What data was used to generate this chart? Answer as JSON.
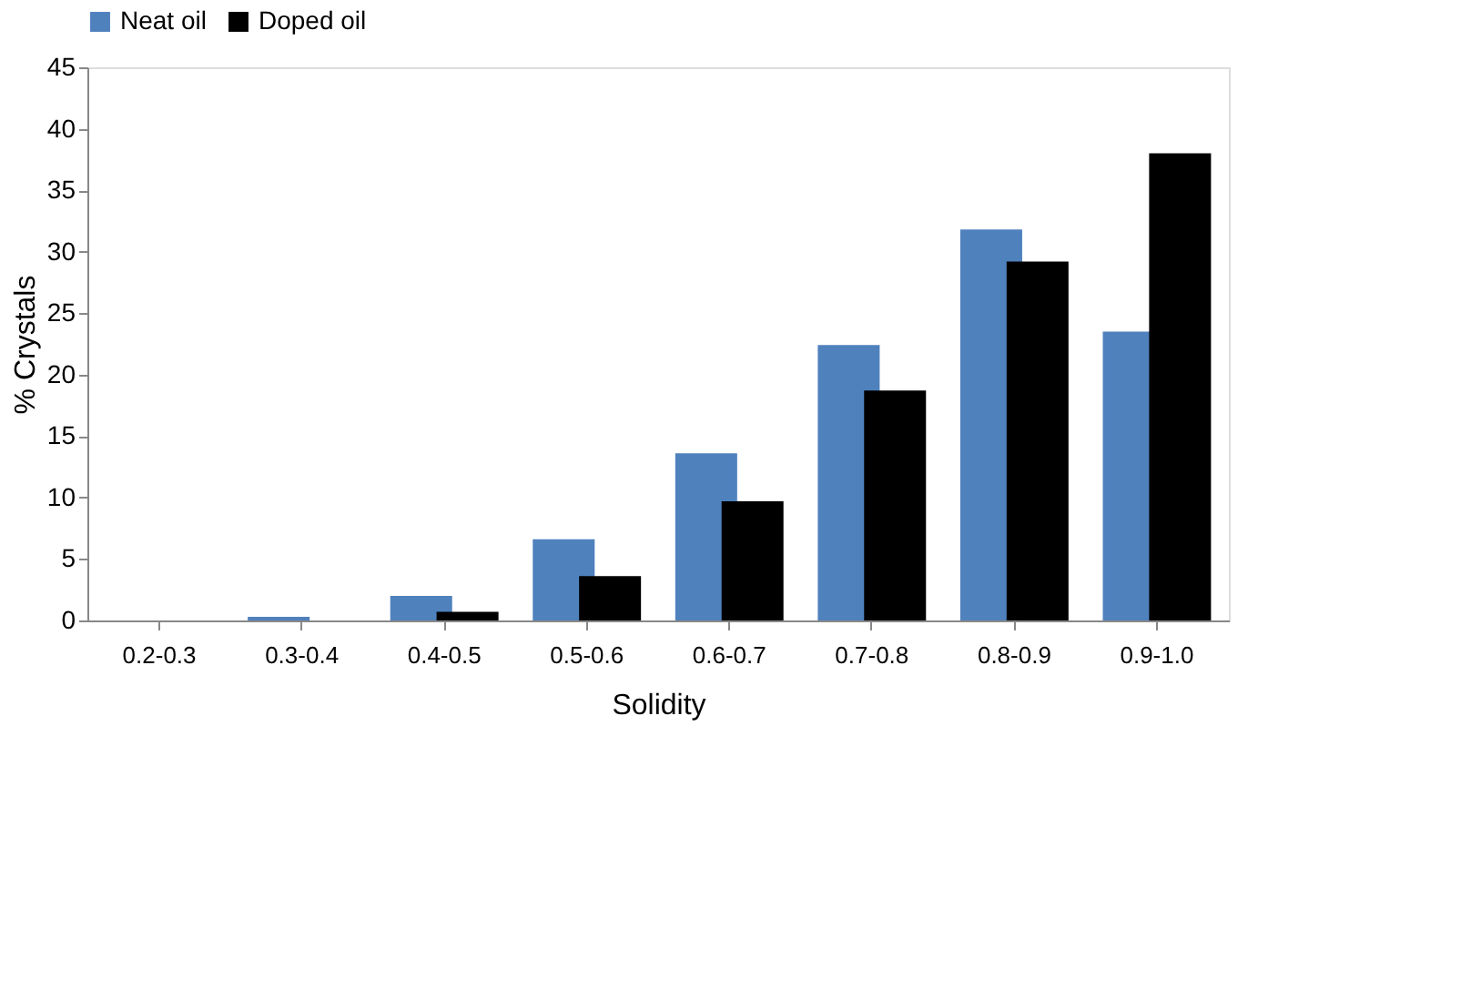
{
  "chart_data": {
    "type": "bar",
    "xlabel": "Solidity",
    "ylabel": "% Crystals",
    "categories": [
      "0.2-0.3",
      "0.3-0.4",
      "0.4-0.5",
      "0.5-0.6",
      "0.6-0.7",
      "0.7-0.8",
      "0.8-0.9",
      "0.9-1.0"
    ],
    "series": [
      {
        "name": "Neat oil",
        "color": "#4f81bd",
        "values": [
          0,
          0.3,
          2.0,
          6.6,
          13.6,
          22.4,
          31.8,
          23.5
        ]
      },
      {
        "name": "Doped oil",
        "color": "#000000",
        "values": [
          0,
          0,
          0.7,
          3.6,
          9.7,
          18.7,
          29.2,
          38.0
        ]
      }
    ],
    "ylim": [
      0,
      45
    ],
    "yticks": [
      0,
      5,
      10,
      15,
      20,
      25,
      30,
      35,
      40,
      45
    ],
    "grid": false,
    "legend": "top"
  }
}
